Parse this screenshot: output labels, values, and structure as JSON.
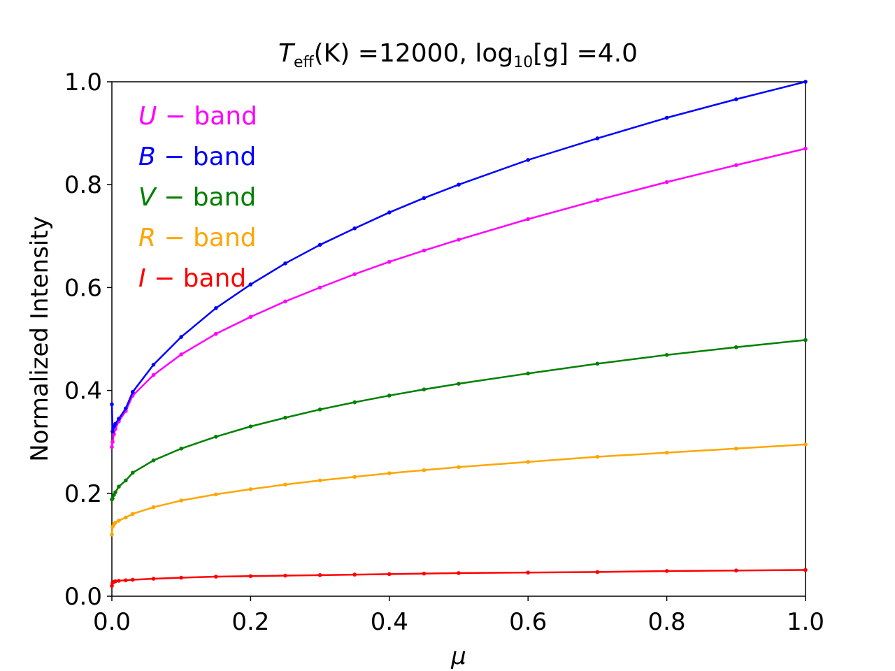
{
  "chart_data": {
    "type": "line",
    "title_parts": {
      "t": "T",
      "eff": "eff",
      "k": "(K) =12000,  log",
      "sub10": "10",
      "g": "[g] =4.0"
    },
    "xlabel": "μ",
    "ylabel": "Normalized Intensity",
    "xlim": [
      0.0,
      1.0
    ],
    "ylim": [
      0.0,
      1.0
    ],
    "xticks": [
      0.0,
      0.2,
      0.4,
      0.6,
      0.8,
      1.0
    ],
    "yticks": [
      0.0,
      0.2,
      0.4,
      0.6,
      0.8,
      1.0
    ],
    "xtick_labels": [
      "0.0",
      "0.2",
      "0.4",
      "0.6",
      "0.8",
      "1.0"
    ],
    "ytick_labels": [
      "0.0",
      "0.2",
      "0.4",
      "0.6",
      "0.8",
      "1.0"
    ],
    "grid": false,
    "legend_placement": "top-left",
    "x": [
      0.0,
      0.001,
      0.003,
      0.005,
      0.01,
      0.02,
      0.03,
      0.06,
      0.1,
      0.15,
      0.2,
      0.25,
      0.3,
      0.35,
      0.4,
      0.45,
      0.5,
      0.6,
      0.7,
      0.8,
      0.9,
      1.0
    ],
    "series": [
      {
        "name": "U",
        "label_letter": "U",
        "label_rest": " − band",
        "color": "#ff00ff",
        "values": [
          0.29,
          0.3,
          0.315,
          0.325,
          0.34,
          0.36,
          0.39,
          0.43,
          0.47,
          0.51,
          0.543,
          0.573,
          0.6,
          0.626,
          0.65,
          0.672,
          0.693,
          0.733,
          0.77,
          0.805,
          0.838,
          0.87
        ]
      },
      {
        "name": "B",
        "label_letter": "B",
        "label_rest": " − band",
        "color": "#0000ff",
        "values": [
          0.373,
          0.32,
          0.33,
          0.335,
          0.345,
          0.365,
          0.397,
          0.45,
          0.504,
          0.56,
          0.606,
          0.647,
          0.683,
          0.715,
          0.746,
          0.774,
          0.8,
          0.848,
          0.89,
          0.93,
          0.966,
          1.0
        ]
      },
      {
        "name": "V",
        "label_letter": "V",
        "label_rest": " − band",
        "color": "#008000",
        "values": [
          0.188,
          0.19,
          0.197,
          0.202,
          0.213,
          0.225,
          0.24,
          0.264,
          0.287,
          0.31,
          0.33,
          0.347,
          0.363,
          0.377,
          0.39,
          0.402,
          0.413,
          0.433,
          0.452,
          0.469,
          0.484,
          0.498
        ]
      },
      {
        "name": "R",
        "label_letter": "R",
        "label_rest": " − band",
        "color": "#ffa500",
        "values": [
          0.12,
          0.135,
          0.14,
          0.143,
          0.147,
          0.153,
          0.16,
          0.173,
          0.186,
          0.198,
          0.208,
          0.217,
          0.225,
          0.232,
          0.239,
          0.245,
          0.251,
          0.261,
          0.271,
          0.279,
          0.287,
          0.295
        ]
      },
      {
        "name": "I",
        "label_letter": "I",
        "label_rest": " − band",
        "color": "#ff0000",
        "values": [
          0.02,
          0.026,
          0.028,
          0.029,
          0.03,
          0.031,
          0.032,
          0.034,
          0.036,
          0.038,
          0.039,
          0.04,
          0.041,
          0.042,
          0.043,
          0.044,
          0.045,
          0.046,
          0.047,
          0.049,
          0.05,
          0.051
        ]
      }
    ]
  }
}
